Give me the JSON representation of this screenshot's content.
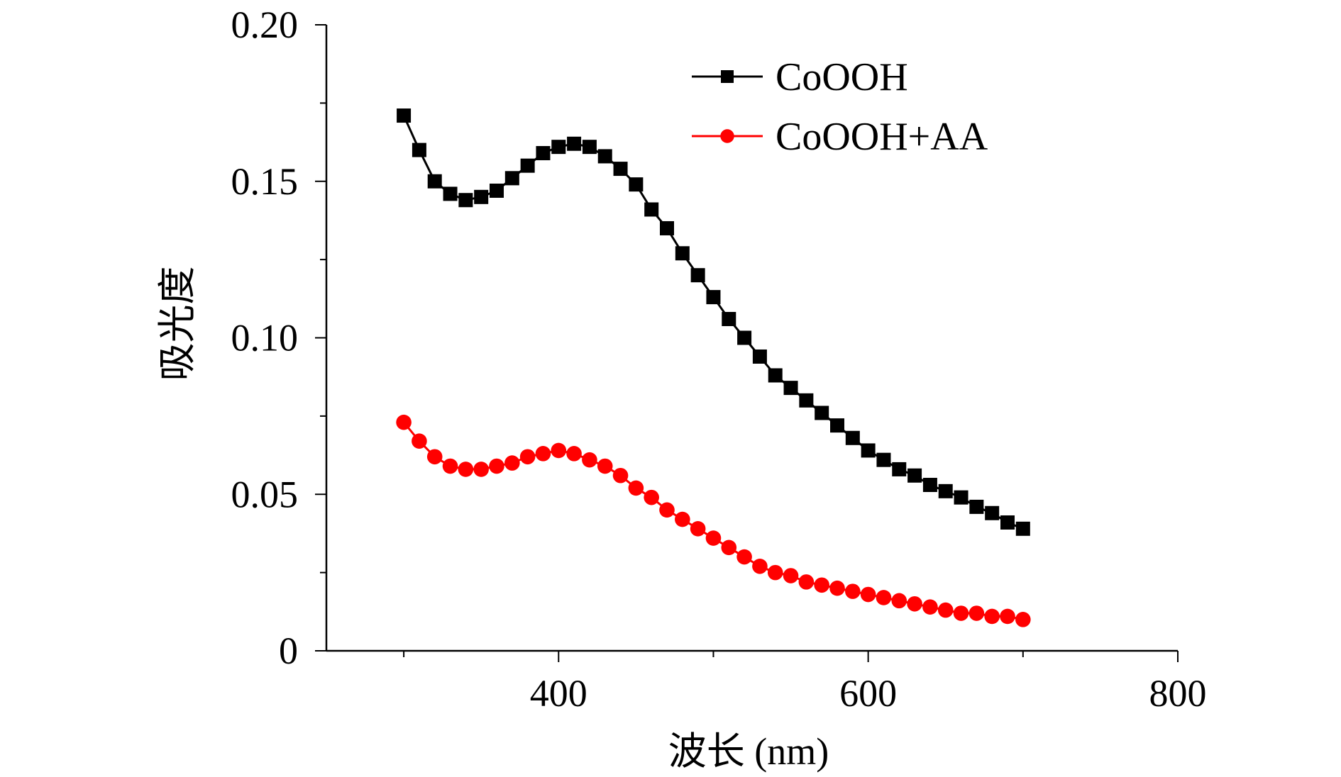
{
  "chart_data": {
    "type": "line",
    "title": "",
    "xlabel": "波长 (nm)",
    "ylabel": "吸光度",
    "xlim": [
      250,
      800
    ],
    "ylim": [
      0,
      0.2
    ],
    "x_ticks": [
      400,
      600,
      800
    ],
    "x_tick_labels": [
      "400",
      "600",
      "800"
    ],
    "x_minor_ticks": [
      300,
      500,
      700
    ],
    "y_ticks": [
      0,
      0.05,
      0.1,
      0.15,
      0.2
    ],
    "y_tick_labels": [
      "0",
      "0.05",
      "0.10",
      "0.15",
      "0.20"
    ],
    "y_minor_ticks": [
      0.025,
      0.075,
      0.125,
      0.175
    ],
    "legend_position": "top-right",
    "x": [
      300,
      310,
      320,
      330,
      340,
      350,
      360,
      370,
      380,
      390,
      400,
      410,
      420,
      430,
      440,
      450,
      460,
      470,
      480,
      490,
      500,
      510,
      520,
      530,
      540,
      550,
      560,
      570,
      580,
      590,
      600,
      610,
      620,
      630,
      640,
      650,
      660,
      670,
      680,
      690,
      700
    ],
    "series": [
      {
        "name": "CoOOH",
        "color": "#000000",
        "marker": "square",
        "values": [
          0.171,
          0.16,
          0.15,
          0.146,
          0.144,
          0.145,
          0.147,
          0.151,
          0.155,
          0.159,
          0.161,
          0.162,
          0.161,
          0.158,
          0.154,
          0.149,
          0.141,
          0.135,
          0.127,
          0.12,
          0.113,
          0.106,
          0.1,
          0.094,
          0.088,
          0.084,
          0.08,
          0.076,
          0.072,
          0.068,
          0.064,
          0.061,
          0.058,
          0.056,
          0.053,
          0.051,
          0.049,
          0.046,
          0.044,
          0.041,
          0.039
        ]
      },
      {
        "name": "CoOOH+AA",
        "color": "#ff0000",
        "marker": "circle",
        "values": [
          0.073,
          0.067,
          0.062,
          0.059,
          0.058,
          0.058,
          0.059,
          0.06,
          0.062,
          0.063,
          0.064,
          0.063,
          0.061,
          0.059,
          0.056,
          0.052,
          0.049,
          0.045,
          0.042,
          0.039,
          0.036,
          0.033,
          0.03,
          0.027,
          0.025,
          0.024,
          0.022,
          0.021,
          0.02,
          0.019,
          0.018,
          0.017,
          0.016,
          0.015,
          0.014,
          0.013,
          0.012,
          0.012,
          0.011,
          0.011,
          0.01
        ]
      }
    ]
  }
}
